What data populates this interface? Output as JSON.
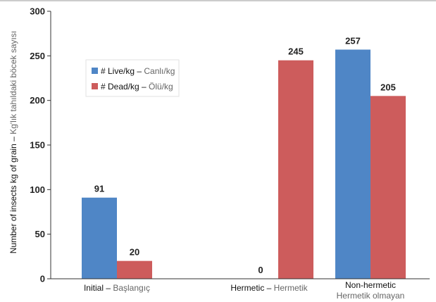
{
  "chart_data": {
    "type": "bar",
    "categories": [
      {
        "label": "Initial",
        "sublabel": "Başlangıç"
      },
      {
        "label": "Hermetic",
        "sublabel": "Hermetik"
      },
      {
        "label": "Non-hermetic",
        "sublabel": "Hermetik olmayan"
      }
    ],
    "series": [
      {
        "name": "# Live/kg",
        "subname": "Canlı/kg",
        "color": "#4f86c6",
        "values": [
          91,
          0,
          257
        ]
      },
      {
        "name": "# Dead/kg",
        "subname": "Ölü/kg",
        "color": "#cd5c5c",
        "values": [
          20,
          245,
          205
        ]
      }
    ],
    "ylabel": "Number of insects kg of grain",
    "ylabel_sub": "Kg'lık tahıldaki böcek sayısı",
    "ylim": [
      0,
      300
    ],
    "yticks": [
      0,
      50,
      100,
      150,
      200,
      250,
      300
    ],
    "legend_placement": "top-left",
    "grid": false,
    "separator": " – "
  }
}
